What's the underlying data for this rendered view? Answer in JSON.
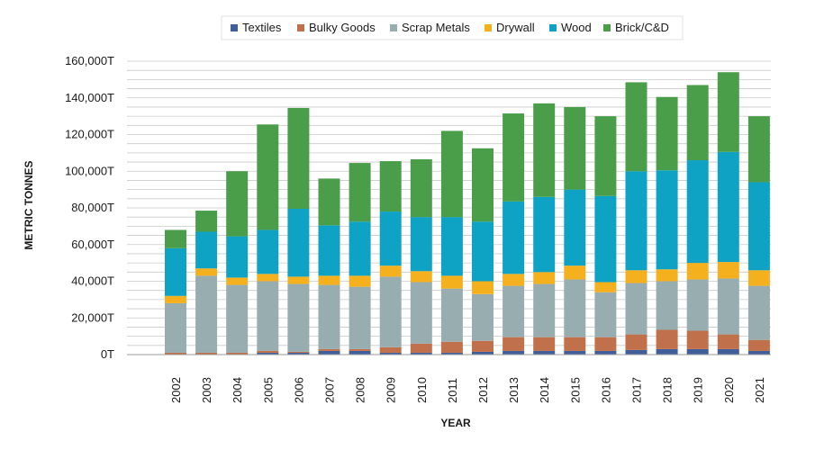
{
  "chart_data": {
    "type": "bar",
    "stacked": true,
    "title": "",
    "xlabel": "YEAR",
    "ylabel": "METRIC TONNES",
    "ylim": [
      0,
      160000
    ],
    "y_tick_values": [
      0,
      20000,
      40000,
      60000,
      80000,
      100000,
      120000,
      140000,
      160000
    ],
    "y_tick_labels": [
      "0T",
      "20,000T",
      "40,000T",
      "60,000T",
      "80,000T",
      "100,000T",
      "120,000T",
      "140,000T",
      "160,000T"
    ],
    "grid": true,
    "legend_position": "top-center",
    "categories": [
      "2002",
      "2003",
      "2004",
      "2005",
      "2006",
      "2007",
      "2008",
      "2009",
      "2010",
      "2011",
      "2012",
      "2013",
      "2014",
      "2015",
      "2016",
      "2017",
      "2018",
      "2019",
      "2020",
      "2021"
    ],
    "series": [
      {
        "name": "Textiles",
        "color": "#3f5e9a",
        "values": [
          0,
          0,
          0,
          1000,
          1000,
          2000,
          2000,
          1000,
          1000,
          1000,
          1500,
          2000,
          2000,
          2000,
          2000,
          2500,
          3000,
          3000,
          3000,
          2000
        ]
      },
      {
        "name": "Bulky Goods",
        "color": "#c0704a",
        "values": [
          1000,
          1000,
          1000,
          1000,
          500,
          1000,
          1000,
          3000,
          5000,
          6000,
          6000,
          7500,
          7500,
          7500,
          7500,
          8500,
          10500,
          10000,
          8000,
          6000
        ]
      },
      {
        "name": "Scrap Metals",
        "color": "#98adb0",
        "values": [
          27000,
          42000,
          37000,
          38000,
          37000,
          35000,
          34000,
          38500,
          33500,
          29000,
          25500,
          28000,
          29000,
          31500,
          24500,
          28000,
          26500,
          28000,
          30500,
          29500
        ]
      },
      {
        "name": "Drywall",
        "color": "#f5b01e",
        "values": [
          4000,
          4000,
          4000,
          4000,
          4000,
          5000,
          6000,
          6000,
          6000,
          7000,
          7000,
          6500,
          6500,
          7500,
          5500,
          7000,
          6500,
          9000,
          9000,
          8500
        ]
      },
      {
        "name": "Wood",
        "color": "#0ea2c4",
        "values": [
          26000,
          20000,
          22500,
          24000,
          37000,
          27500,
          29500,
          29500,
          29500,
          32000,
          32500,
          39500,
          41000,
          41500,
          47000,
          54000,
          54000,
          56000,
          60000,
          48000
        ]
      },
      {
        "name": "Brick/C&D",
        "color": "#4a9e4a",
        "values": [
          10000,
          11500,
          35500,
          57500,
          55000,
          25500,
          32000,
          27500,
          31500,
          47000,
          40000,
          48000,
          51000,
          45000,
          43500,
          48500,
          40000,
          41000,
          43500,
          36000
        ]
      }
    ]
  }
}
